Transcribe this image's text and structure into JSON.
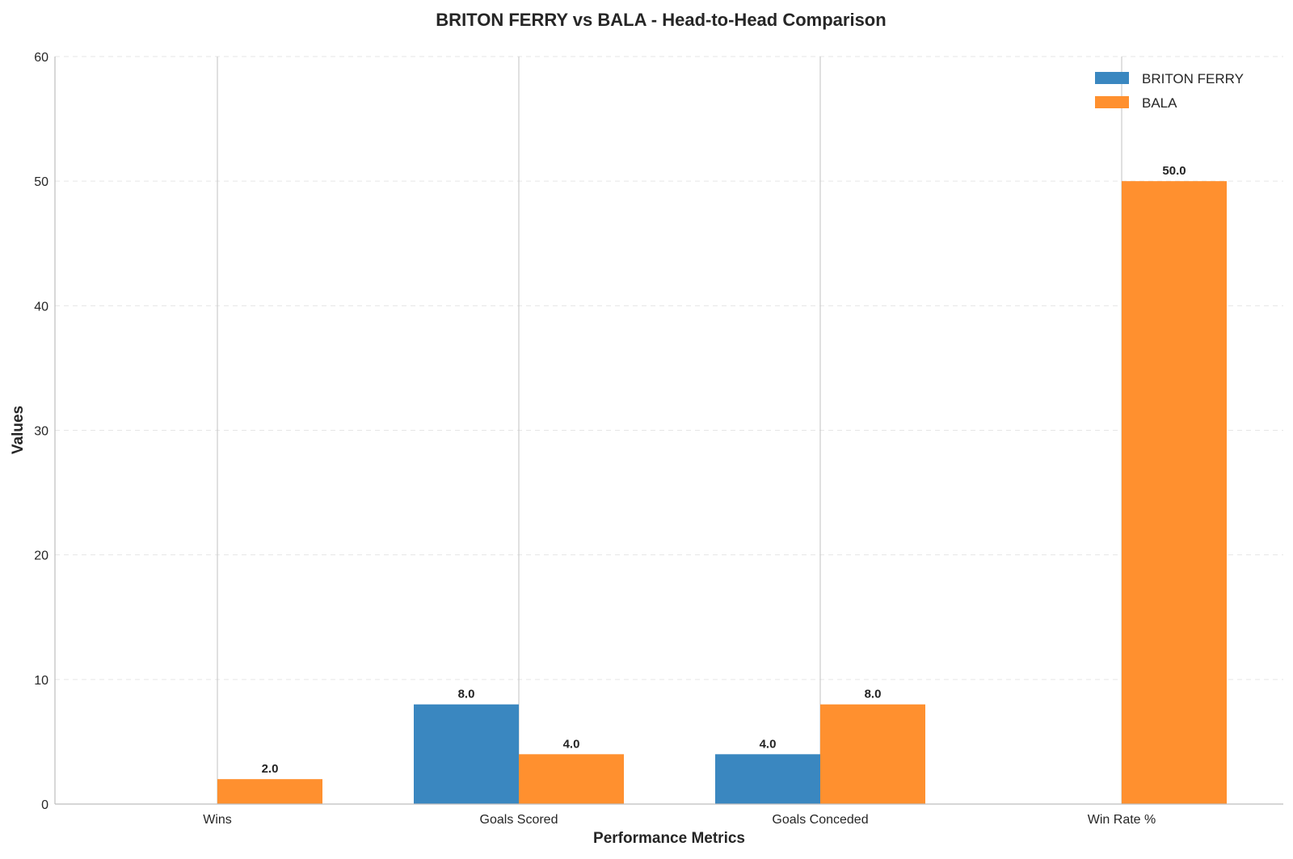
{
  "chart_data": {
    "type": "bar",
    "title": "BRITON FERRY vs BALA - Head-to-Head Comparison",
    "xlabel": "Performance Metrics",
    "ylabel": "Values",
    "categories": [
      "Wins",
      "Goals Scored",
      "Goals Conceded",
      "Win Rate %"
    ],
    "series": [
      {
        "name": "BRITON FERRY",
        "color": "#3a87c0",
        "values": [
          0,
          8,
          4,
          0
        ],
        "labels": [
          "",
          "8.0",
          "4.0",
          ""
        ]
      },
      {
        "name": "BALA",
        "color": "#ff902f",
        "values": [
          2,
          4,
          8,
          50
        ],
        "labels": [
          "2.0",
          "4.0",
          "8.0",
          "50.0"
        ]
      }
    ],
    "ylim": [
      0,
      60
    ],
    "yticks": [
      0,
      10,
      20,
      30,
      40,
      50,
      60
    ],
    "grid": true,
    "legend_position": "top-right"
  }
}
